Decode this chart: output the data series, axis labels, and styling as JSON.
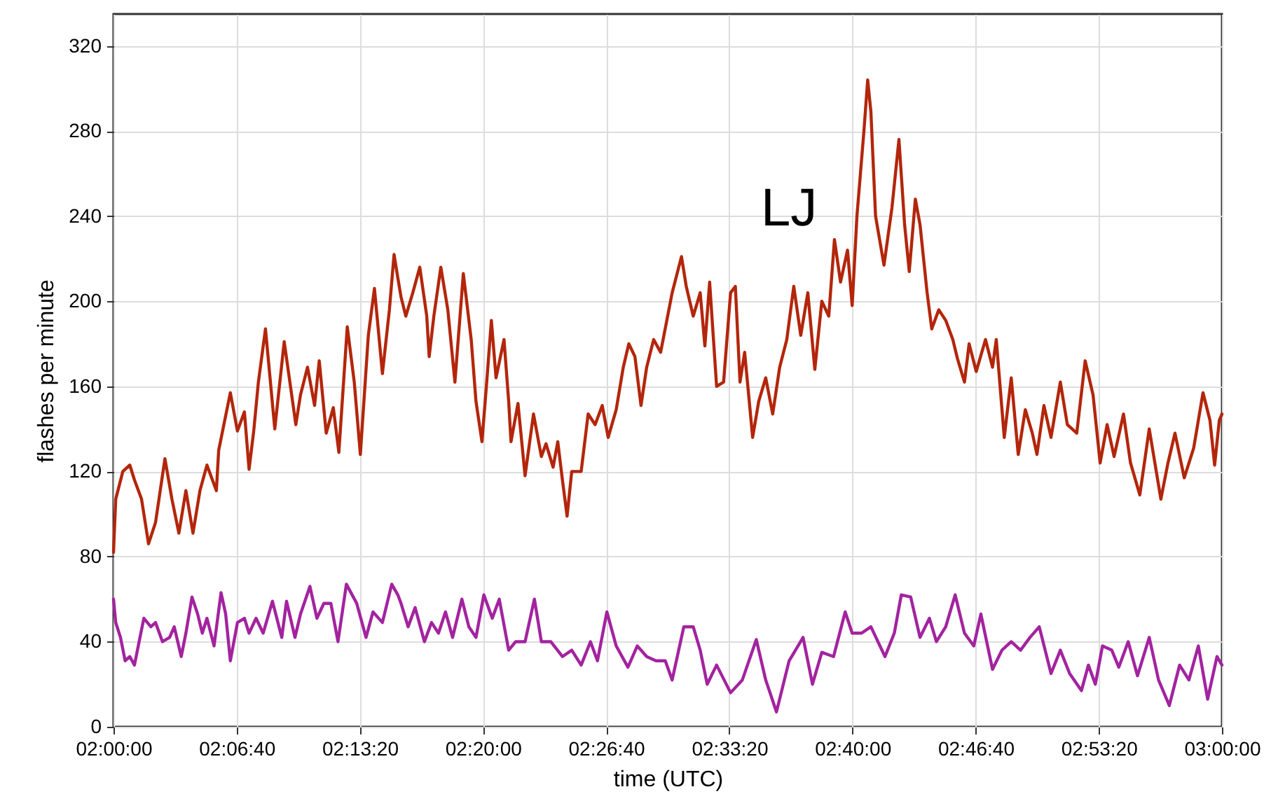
{
  "chart_data": {
    "type": "line",
    "xlabel": "time (UTC)",
    "ylabel": "flashes per minute",
    "xlim": [
      2,
      3
    ],
    "ylim": [
      0,
      335
    ],
    "xticks": [
      {
        "value": 2,
        "label": "02:00:00"
      },
      {
        "value": 2.1111,
        "label": "02:06:40"
      },
      {
        "value": 2.2222,
        "label": "02:13:20"
      },
      {
        "value": 2.3333,
        "label": "02:20:00"
      },
      {
        "value": 2.4444,
        "label": "02:26:40"
      },
      {
        "value": 2.5556,
        "label": "02:33:20"
      },
      {
        "value": 2.6667,
        "label": "02:40:00"
      },
      {
        "value": 2.7778,
        "label": "02:46:40"
      },
      {
        "value": 2.8889,
        "label": "02:53:20"
      },
      {
        "value": 3,
        "label": "03:00:00"
      }
    ],
    "yticks": [
      0,
      40,
      80,
      120,
      160,
      200,
      240,
      280,
      320
    ],
    "grid": true,
    "line_style": "solid",
    "annotations": [
      "LJ"
    ],
    "series": [
      {
        "color": "#b3260b",
        "x": [
          2.0,
          2.002,
          2.0084,
          2.0147,
          2.0189,
          2.0253,
          2.0316,
          2.0379,
          2.0464,
          2.0527,
          2.059,
          2.0653,
          2.0717,
          2.078,
          2.0843,
          2.0928,
          2.0949,
          2.1054,
          2.1118,
          2.1181,
          2.1223,
          2.1265,
          2.1307,
          2.1371,
          2.1455,
          2.154,
          2.1645,
          2.1687,
          2.175,
          2.1814,
          2.1856,
          2.1919,
          2.1983,
          2.2033,
          2.2109,
          2.2172,
          2.2227,
          2.2299,
          2.2354,
          2.2426,
          2.2489,
          2.2531,
          2.2565,
          2.2594,
          2.2637,
          2.27,
          2.2763,
          2.2826,
          2.2848,
          2.289,
          2.2953,
          2.3016,
          2.308,
          2.3156,
          2.3227,
          2.327,
          2.3324,
          2.3367,
          2.3409,
          2.3451,
          2.3523,
          2.3565,
          2.3586,
          2.3649,
          2.3713,
          2.3789,
          2.386,
          2.3902,
          2.3966,
          2.4008,
          2.405,
          2.4092,
          2.4134,
          2.4219,
          2.4282,
          2.4345,
          2.4409,
          2.4463,
          2.4535,
          2.4599,
          2.4649,
          2.4704,
          2.4759,
          2.481,
          2.4873,
          2.4936,
          2.504,
          2.5124,
          2.5167,
          2.523,
          2.5293,
          2.5335,
          2.5378,
          2.5441,
          2.5504,
          2.5567,
          2.561,
          2.5652,
          2.5694,
          2.5766,
          2.5821,
          2.5884,
          2.5947,
          2.601,
          2.6074,
          2.6137,
          2.62,
          2.6264,
          2.6327,
          2.639,
          2.6453,
          2.6504,
          2.6559,
          2.6622,
          2.6664,
          2.6707,
          2.677,
          2.6804,
          2.6833,
          2.6875,
          2.6951,
          2.7023,
          2.7086,
          2.7137,
          2.7179,
          2.7234,
          2.7276,
          2.734,
          2.7382,
          2.7445,
          2.7508,
          2.7572,
          2.7614,
          2.7677,
          2.7719,
          2.7783,
          2.7867,
          2.793,
          2.7964,
          2.8036,
          2.8099,
          2.8162,
          2.8226,
          2.8289,
          2.8331,
          2.8394,
          2.8458,
          2.8542,
          2.8605,
          2.869,
          2.8766,
          2.8837,
          2.8901,
          2.8964,
          2.9027,
          2.9112,
          2.9175,
          2.9259,
          2.9344,
          2.9449,
          2.9513,
          2.9576,
          2.966,
          2.9745,
          2.9829,
          2.9892,
          2.9934,
          2.9976,
          3.0
        ],
        "values": [
          82,
          107,
          120,
          123,
          116,
          107,
          86,
          96,
          126,
          107,
          91,
          111,
          91,
          111,
          123,
          111,
          130,
          157,
          139,
          148,
          121,
          139,
          162,
          187,
          140,
          181,
          142,
          156,
          169,
          151,
          172,
          138,
          150,
          129,
          188,
          162,
          128,
          184,
          206,
          166,
          196,
          222,
          211,
          202,
          193,
          204,
          216,
          193,
          174,
          193,
          216,
          196,
          162,
          213,
          182,
          153,
          134,
          162,
          191,
          164,
          182,
          153,
          134,
          152,
          118,
          147,
          127,
          133,
          122,
          134,
          116,
          99,
          120,
          120,
          147,
          142,
          151,
          136,
          149,
          169,
          180,
          174,
          151,
          169,
          182,
          176,
          204,
          221,
          207,
          193,
          204,
          179,
          209,
          160,
          162,
          204,
          207,
          162,
          176,
          136,
          153,
          164,
          147,
          169,
          182,
          207,
          184,
          204,
          168,
          200,
          193,
          229,
          209,
          224,
          198,
          240,
          280,
          304,
          289,
          240,
          217,
          244,
          276,
          236,
          214,
          248,
          236,
          204,
          187,
          196,
          191,
          182,
          173,
          162,
          180,
          167,
          182,
          169,
          182,
          136,
          164,
          128,
          149,
          138,
          128,
          151,
          136,
          162,
          142,
          138,
          172,
          156,
          124,
          142,
          127,
          147,
          124,
          109,
          140,
          107,
          124,
          138,
          117,
          131,
          157,
          144,
          123,
          144,
          147
        ]
      },
      {
        "color": "#a3239f",
        "x": [
          2.0,
          2.002,
          2.0063,
          2.0105,
          2.0147,
          2.0189,
          2.0231,
          2.0274,
          2.0337,
          2.0379,
          2.0442,
          2.0506,
          2.0548,
          2.0611,
          2.0653,
          2.0708,
          2.0759,
          2.0801,
          2.0843,
          2.0907,
          2.097,
          2.1012,
          2.1054,
          2.1118,
          2.1181,
          2.1223,
          2.1286,
          2.135,
          2.1434,
          2.1518,
          2.1561,
          2.1637,
          2.1687,
          2.1772,
          2.1835,
          2.1898,
          2.1961,
          2.2025,
          2.2101,
          2.2194,
          2.2278,
          2.2341,
          2.2426,
          2.251,
          2.2565,
          2.2594,
          2.2658,
          2.2721,
          2.2805,
          2.2869,
          2.2932,
          2.2995,
          2.3059,
          2.3143,
          2.3206,
          2.327,
          2.3341,
          2.3417,
          2.348,
          2.3565,
          2.3628,
          2.3713,
          2.3797,
          2.386,
          2.3945,
          2.405,
          2.4134,
          2.4219,
          2.4303,
          2.4366,
          2.4451,
          2.4535,
          2.4641,
          2.4725,
          2.481,
          2.4894,
          2.4978,
          2.504,
          2.5145,
          2.523,
          2.5293,
          2.5356,
          2.5441,
          2.5567,
          2.5673,
          2.5799,
          2.5884,
          2.5981,
          2.6095,
          2.6221,
          2.6306,
          2.639,
          2.6496,
          2.6601,
          2.6664,
          2.6749,
          2.6833,
          2.696,
          2.7044,
          2.7107,
          2.7192,
          2.7276,
          2.7361,
          2.7424,
          2.7508,
          2.7593,
          2.7677,
          2.7761,
          2.7825,
          2.793,
          2.8015,
          2.8099,
          2.8183,
          2.8268,
          2.8352,
          2.8458,
          2.8542,
          2.8626,
          2.8732,
          2.8795,
          2.8858,
          2.8922,
          2.9006,
          2.9069,
          2.9154,
          2.9238,
          2.9344,
          2.9428,
          2.9525,
          2.9618,
          2.9702,
          2.9787,
          2.9871,
          2.9955,
          3.0
        ],
        "values": [
          60,
          49,
          42,
          31,
          33,
          29,
          40,
          51,
          47,
          49,
          40,
          42,
          47,
          33,
          44,
          61,
          53,
          44,
          51,
          38,
          63,
          53,
          31,
          49,
          51,
          44,
          51,
          44,
          59,
          42,
          59,
          42,
          53,
          66,
          51,
          58,
          58,
          40,
          67,
          58,
          42,
          54,
          49,
          67,
          62,
          58,
          47,
          56,
          40,
          49,
          44,
          54,
          42,
          60,
          47,
          42,
          62,
          51,
          60,
          36,
          40,
          40,
          60,
          40,
          40,
          33,
          36,
          29,
          40,
          31,
          54,
          38,
          28,
          38,
          33,
          31,
          31,
          22,
          47,
          47,
          36,
          20,
          29,
          16,
          22,
          41,
          22,
          7,
          31,
          42,
          20,
          35,
          33,
          54,
          44,
          44,
          47,
          33,
          44,
          62,
          61,
          42,
          51,
          40,
          47,
          62,
          44,
          38,
          53,
          27,
          36,
          40,
          36,
          42,
          47,
          25,
          36,
          25,
          17,
          29,
          20,
          38,
          36,
          28,
          40,
          24,
          42,
          22,
          10,
          29,
          22,
          38,
          13,
          33,
          29
        ]
      }
    ]
  }
}
